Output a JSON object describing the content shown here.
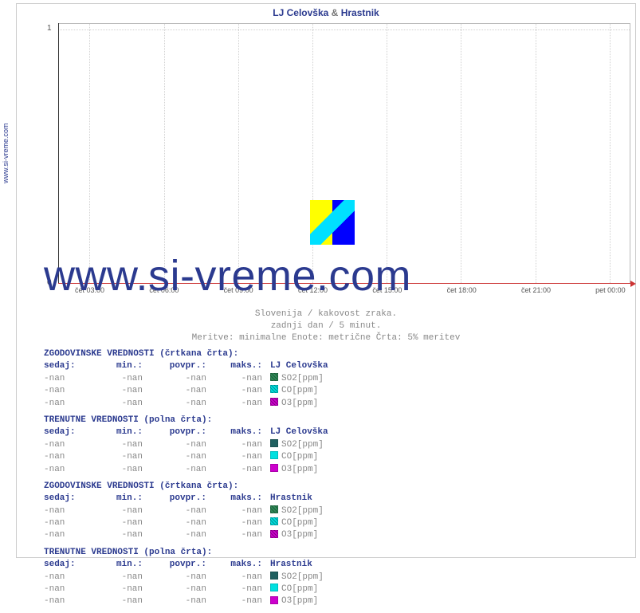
{
  "side_url": "www.si-vreme.com",
  "watermark": "www.si-vreme.com",
  "title": {
    "loc1": "LJ Celovška",
    "amp": "&",
    "loc2": "Hrastnik"
  },
  "chart": {
    "type": "line",
    "background_color": "#ffffff",
    "grid_color": "#d0d0d0",
    "axis_x_color": "#cc3333",
    "axis_y_color": "#333333",
    "ylim": [
      0,
      1
    ],
    "ytick_labels": [
      "0",
      "1"
    ],
    "ytick_positions_pct": [
      100,
      2
    ],
    "xtick_labels": [
      "čet 03:00",
      "čet 06:00",
      "čet 09:00",
      "čet 12:00",
      "čet 15:00",
      "čet 18:00",
      "čet 21:00",
      "pet 00:00"
    ],
    "xtick_positions_pct": [
      5.5,
      18.5,
      31.5,
      44.5,
      57.5,
      70.5,
      83.5,
      96.5
    ],
    "label_fontsize": 9,
    "title_fontsize": 12
  },
  "subtitle": {
    "l1": "Slovenija / kakovost zraka.",
    "l2": "zadnji dan / 5 minut.",
    "l3": "Meritve: minimalne  Enote: metrične  Črta: 5% meritev"
  },
  "blocks": [
    {
      "heading": "ZGODOVINSKE VREDNOSTI (črtkana črta):",
      "cols": {
        "sedaj": "sedaj:",
        "min": "min.:",
        "povp": "povpr.:",
        "maks": "maks.:",
        "loc": "LJ Celovška"
      },
      "rows": [
        {
          "sedaj": "-nan",
          "min": "-nan",
          "povp": "-nan",
          "maks": "-nan",
          "swatch": "#2e8b57",
          "hatch": true,
          "label": "SO2[ppm]"
        },
        {
          "sedaj": "-nan",
          "min": "-nan",
          "povp": "-nan",
          "maks": "-nan",
          "swatch": "#00e0e0",
          "hatch": true,
          "label": "CO[ppm]"
        },
        {
          "sedaj": "-nan",
          "min": "-nan",
          "povp": "-nan",
          "maks": "-nan",
          "swatch": "#cc00cc",
          "hatch": true,
          "label": "O3[ppm]"
        }
      ]
    },
    {
      "heading": "TRENUTNE VREDNOSTI (polna črta):",
      "cols": {
        "sedaj": "sedaj:",
        "min": "min.:",
        "povp": "povpr.:",
        "maks": "maks.:",
        "loc": "LJ Celovška"
      },
      "rows": [
        {
          "sedaj": "-nan",
          "min": "-nan",
          "povp": "-nan",
          "maks": "-nan",
          "swatch": "#1f5f5f",
          "hatch": false,
          "label": "SO2[ppm]"
        },
        {
          "sedaj": "-nan",
          "min": "-nan",
          "povp": "-nan",
          "maks": "-nan",
          "swatch": "#00e0e0",
          "hatch": false,
          "label": "CO[ppm]"
        },
        {
          "sedaj": "-nan",
          "min": "-nan",
          "povp": "-nan",
          "maks": "-nan",
          "swatch": "#cc00cc",
          "hatch": false,
          "label": "O3[ppm]"
        }
      ]
    },
    {
      "heading": "ZGODOVINSKE VREDNOSTI (črtkana črta):",
      "cols": {
        "sedaj": "sedaj:",
        "min": "min.:",
        "povp": "povpr.:",
        "maks": "maks.:",
        "loc": "Hrastnik"
      },
      "rows": [
        {
          "sedaj": "-nan",
          "min": "-nan",
          "povp": "-nan",
          "maks": "-nan",
          "swatch": "#2e8b57",
          "hatch": true,
          "label": "SO2[ppm]"
        },
        {
          "sedaj": "-nan",
          "min": "-nan",
          "povp": "-nan",
          "maks": "-nan",
          "swatch": "#00e0e0",
          "hatch": true,
          "label": "CO[ppm]"
        },
        {
          "sedaj": "-nan",
          "min": "-nan",
          "povp": "-nan",
          "maks": "-nan",
          "swatch": "#cc00cc",
          "hatch": true,
          "label": "O3[ppm]"
        }
      ]
    },
    {
      "heading": "TRENUTNE VREDNOSTI (polna črta):",
      "cols": {
        "sedaj": "sedaj:",
        "min": "min.:",
        "povp": "povpr.:",
        "maks": "maks.:",
        "loc": "Hrastnik"
      },
      "rows": [
        {
          "sedaj": "-nan",
          "min": "-nan",
          "povp": "-nan",
          "maks": "-nan",
          "swatch": "#1f5f5f",
          "hatch": false,
          "label": "SO2[ppm]"
        },
        {
          "sedaj": "-nan",
          "min": "-nan",
          "povp": "-nan",
          "maks": "-nan",
          "swatch": "#00e0e0",
          "hatch": false,
          "label": "CO[ppm]"
        },
        {
          "sedaj": "-nan",
          "min": "-nan",
          "povp": "-nan",
          "maks": "-nan",
          "swatch": "#cc00cc",
          "hatch": false,
          "label": "O3[ppm]"
        }
      ]
    }
  ]
}
